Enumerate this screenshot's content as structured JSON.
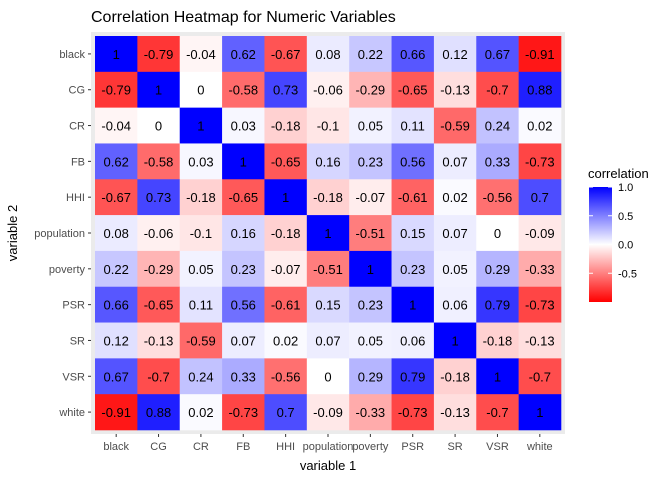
{
  "chart_data": {
    "type": "heatmap",
    "title": "Correlation Heatmap for Numeric Variables",
    "xlabel": "variable 1",
    "ylabel": "variable 2",
    "x_categories": [
      "black",
      "CG",
      "CR",
      "FB",
      "HHI",
      "population",
      "poverty",
      "PSR",
      "SR",
      "VSR",
      "white"
    ],
    "y_categories": [
      "black",
      "CG",
      "CR",
      "FB",
      "HHI",
      "population",
      "poverty",
      "PSR",
      "SR",
      "VSR",
      "white"
    ],
    "values": [
      [
        1,
        -0.79,
        -0.04,
        0.62,
        -0.67,
        0.08,
        0.22,
        0.66,
        0.12,
        0.67,
        -0.91
      ],
      [
        -0.79,
        1,
        0,
        -0.58,
        0.73,
        -0.06,
        -0.29,
        -0.65,
        -0.13,
        -0.7,
        0.88
      ],
      [
        -0.04,
        0,
        1,
        0.03,
        -0.18,
        -0.1,
        0.05,
        0.11,
        -0.59,
        0.24,
        0.02
      ],
      [
        0.62,
        -0.58,
        0.03,
        1,
        -0.65,
        0.16,
        0.23,
        0.56,
        0.07,
        0.33,
        -0.73
      ],
      [
        -0.67,
        0.73,
        -0.18,
        -0.65,
        1,
        -0.18,
        -0.07,
        -0.61,
        0.02,
        -0.56,
        0.7
      ],
      [
        0.08,
        -0.06,
        -0.1,
        0.16,
        -0.18,
        1,
        -0.51,
        0.15,
        0.07,
        0,
        -0.09
      ],
      [
        0.22,
        -0.29,
        0.05,
        0.23,
        -0.07,
        -0.51,
        1,
        0.23,
        0.05,
        0.29,
        -0.33
      ],
      [
        0.66,
        -0.65,
        0.11,
        0.56,
        -0.61,
        0.15,
        0.23,
        1,
        0.06,
        0.79,
        -0.73
      ],
      [
        0.12,
        -0.13,
        -0.59,
        0.07,
        0.02,
        0.07,
        0.05,
        0.06,
        1,
        -0.18,
        -0.13
      ],
      [
        0.67,
        -0.7,
        0.24,
        0.33,
        -0.56,
        0,
        0.29,
        0.79,
        -0.18,
        1,
        -0.7
      ],
      [
        -0.91,
        0.88,
        0.02,
        -0.73,
        0.7,
        -0.09,
        -0.33,
        -0.73,
        -0.13,
        -0.7,
        1
      ]
    ],
    "color_scale": {
      "low": "#FF0000",
      "mid": "#FFFFFF",
      "high": "#0000FF",
      "limits": [
        -1,
        1
      ]
    },
    "legend": {
      "title": "correlation",
      "placement": "right",
      "ticks": [
        1.0,
        0.5,
        0.0,
        -0.5
      ],
      "tick_labels": [
        "1.0",
        "0.5",
        "0.0",
        "-0.5"
      ]
    },
    "panel_background": "#EBEBEB",
    "grid": true
  }
}
